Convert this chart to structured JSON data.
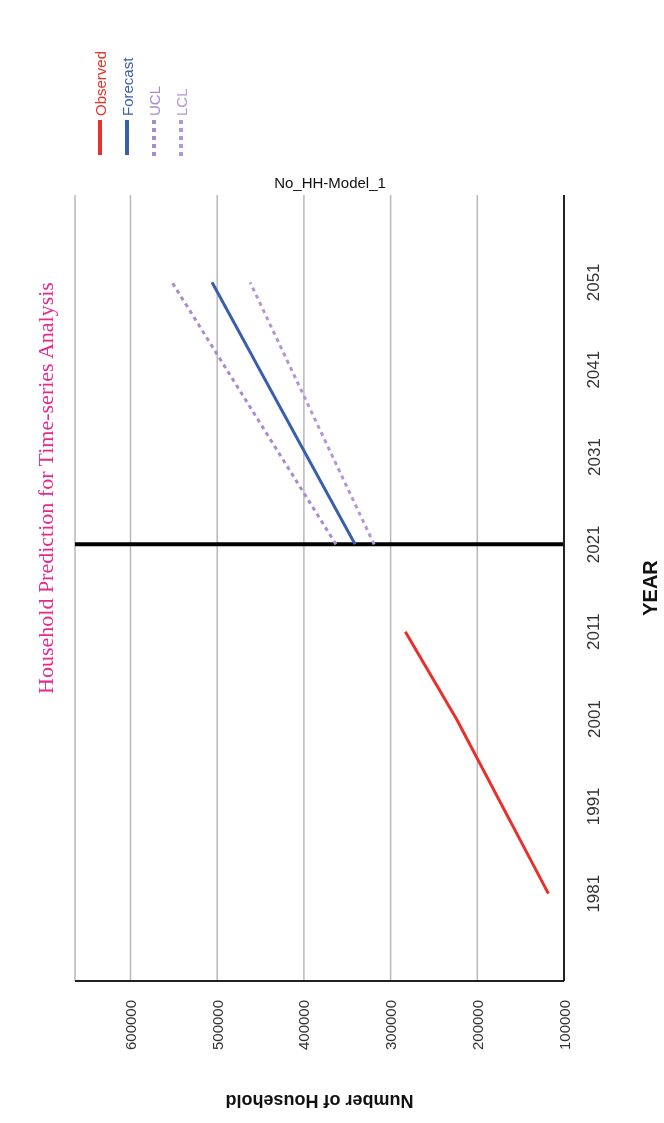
{
  "chart_data": {
    "type": "line",
    "title": "Household Prediction for Time-series Analysis",
    "subtitle": "No_HH-Model_1",
    "xlabel": "Number of Household",
    "ylabel": "YEAR",
    "xlim": [
      664000,
      100000
    ],
    "xticks": [
      600000,
      500000,
      400000,
      300000,
      200000,
      100000
    ],
    "ylim": [
      1971,
      2061
    ],
    "yticks": [
      1981,
      1991,
      2001,
      2011,
      2021,
      2031,
      2041,
      2051
    ],
    "grid": "x",
    "legend": "top left",
    "marker": "none",
    "ref_lines": [
      {
        "axis": "y",
        "value": 2021,
        "color": "#000000"
      }
    ],
    "series": [
      {
        "name": "Observed",
        "color": "#e8312a",
        "line_style": "solid",
        "x": [
          118000,
          224000,
          283000
        ],
        "values": [
          1981,
          2001,
          2011
        ]
      },
      {
        "name": "Forecast",
        "color": "#3a5eae",
        "line_style": "solid",
        "x": [
          341000,
          506000
        ],
        "values": [
          2021,
          2051
        ]
      },
      {
        "name": "UCL",
        "color": "#a98bd0",
        "line_style": "dotted",
        "x": [
          363000,
          552000
        ],
        "values": [
          2021,
          2051
        ]
      },
      {
        "name": "LCL",
        "color": "#b496d8",
        "line_style": "dotted",
        "x": [
          319000,
          462000
        ],
        "values": [
          2021,
          2051
        ]
      }
    ]
  }
}
